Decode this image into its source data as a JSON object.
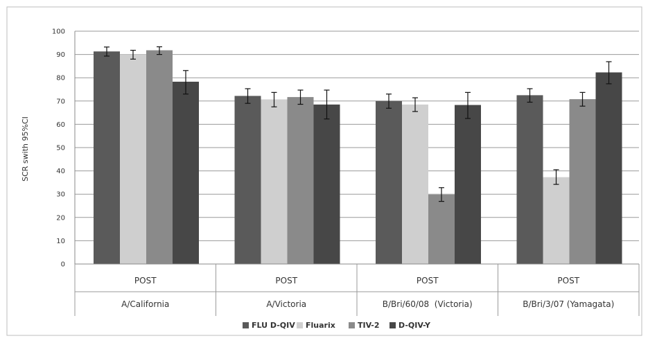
{
  "chart_data": {
    "type": "bar",
    "title": "",
    "ylabel": "SCR swith 95%CI",
    "xlabel": "",
    "ylim": [
      0,
      100
    ],
    "yticks": [
      "0",
      "10",
      "20",
      "30",
      "40",
      "50",
      "60",
      "70",
      "80",
      "90",
      "100"
    ],
    "grid": "horizontal",
    "legend_position": "bottom",
    "categories": [
      {
        "sub": "POST",
        "group": "A/California"
      },
      {
        "sub": "POST",
        "group": "A/Victoria"
      },
      {
        "sub": "POST",
        "group": "B/Bri/60/08  (Victoria)"
      },
      {
        "sub": "POST",
        "group": "B/Bri/3/07 (Yamagata)"
      }
    ],
    "series": [
      {
        "name": "FLU D-QIV",
        "color": "#5a5a5a",
        "values": [
          91.3,
          72.2,
          70.0,
          72.5
        ],
        "ci_low": [
          89.3,
          69.0,
          66.9,
          69.5
        ],
        "ci_high": [
          93.2,
          75.3,
          73.0,
          75.3
        ]
      },
      {
        "name": "Fluarix",
        "color": "#cfcfcf",
        "values": [
          90.0,
          70.7,
          68.5,
          37.3
        ],
        "ci_low": [
          88.0,
          67.5,
          65.5,
          34.2
        ],
        "ci_high": [
          91.8,
          73.7,
          71.4,
          40.5
        ]
      },
      {
        "name": "TIV-2",
        "color": "#8a8a8a",
        "values": [
          91.8,
          71.7,
          29.8,
          70.8
        ],
        "ci_low": [
          90.0,
          68.6,
          26.9,
          67.8
        ],
        "ci_high": [
          93.3,
          74.7,
          32.8,
          73.7
        ]
      },
      {
        "name": "D-QIV-Y",
        "color": "#474747",
        "values": [
          78.3,
          68.5,
          68.3,
          82.3
        ],
        "ci_low": [
          73.0,
          62.3,
          62.5,
          77.4
        ],
        "ci_high": [
          83.1,
          74.7,
          73.7,
          86.9
        ]
      }
    ]
  }
}
